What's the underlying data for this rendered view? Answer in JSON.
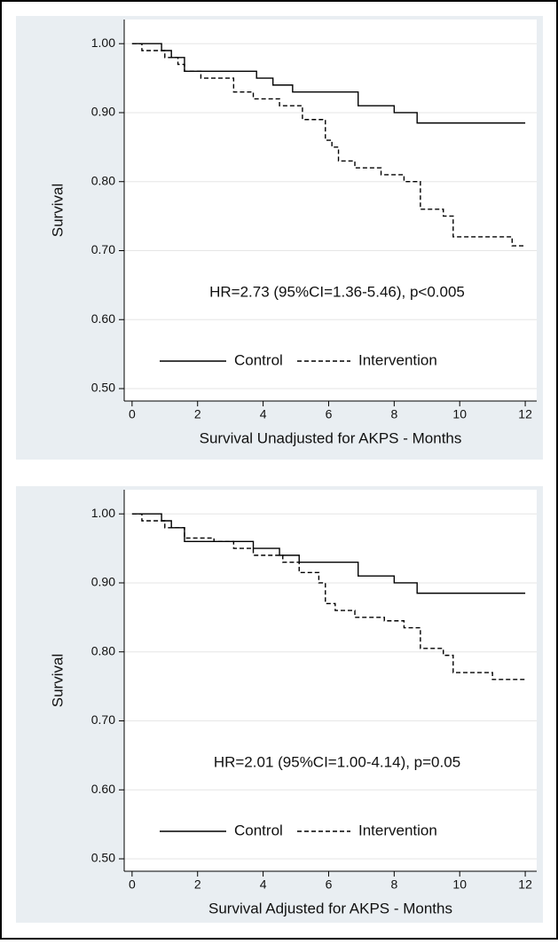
{
  "chart_data": [
    {
      "type": "line",
      "drawstyle": "steps-post",
      "x_label": "Survival Unadjusted for AKPS - Months",
      "y_label": "Survival",
      "annotation": "HR=2.73 (95%CI=1.36-5.46), p<0.005",
      "xlim": [
        -0.24,
        12.35
      ],
      "xticks": [
        0,
        2,
        4,
        6,
        8,
        10,
        12
      ],
      "ylim": [
        0.482,
        1.035
      ],
      "yticks": [
        {
          "value": 0.5,
          "label": "0.50"
        },
        {
          "value": 0.6,
          "label": "0.60"
        },
        {
          "value": 0.7,
          "label": "0.70"
        },
        {
          "value": 0.8,
          "label": "0.80"
        },
        {
          "value": 0.9,
          "label": "0.90"
        },
        {
          "value": 1.0,
          "label": "1.00"
        }
      ],
      "grid": true,
      "series": [
        {
          "name": "Control",
          "color": "#000000",
          "linestyle": "solid",
          "x": [
            0,
            0.9,
            1.2,
            1.6,
            3.8,
            4.3,
            4.9,
            6.9,
            8.0,
            8.7,
            12
          ],
          "values": [
            1.0,
            0.99,
            0.98,
            0.96,
            0.95,
            0.94,
            0.93,
            0.91,
            0.9,
            0.885,
            0.885
          ]
        },
        {
          "name": "Intervention",
          "color": "#000000",
          "linestyle": "dashed",
          "x": [
            0,
            0.3,
            1.0,
            1.4,
            1.6,
            2.1,
            3.1,
            3.7,
            4.5,
            5.2,
            5.9,
            6.1,
            6.3,
            6.8,
            7.6,
            8.3,
            8.8,
            9.5,
            9.8,
            11.6,
            12
          ],
          "values": [
            1.0,
            0.99,
            0.98,
            0.97,
            0.96,
            0.95,
            0.93,
            0.92,
            0.91,
            0.89,
            0.86,
            0.85,
            0.83,
            0.82,
            0.81,
            0.8,
            0.76,
            0.75,
            0.72,
            0.707,
            0.707
          ]
        }
      ]
    },
    {
      "type": "line",
      "drawstyle": "steps-post",
      "x_label": "Survival Adjusted for AKPS - Months",
      "y_label": "Survival",
      "annotation": "HR=2.01 (95%CI=1.00-4.14), p=0.05",
      "xlim": [
        -0.24,
        12.35
      ],
      "xticks": [
        0,
        2,
        4,
        6,
        8,
        10,
        12
      ],
      "ylim": [
        0.482,
        1.035
      ],
      "yticks": [
        {
          "value": 0.5,
          "label": "0.50"
        },
        {
          "value": 0.6,
          "label": "0.60"
        },
        {
          "value": 0.7,
          "label": "0.70"
        },
        {
          "value": 0.8,
          "label": "0.80"
        },
        {
          "value": 0.9,
          "label": "0.90"
        },
        {
          "value": 1.0,
          "label": "1.00"
        }
      ],
      "grid": true,
      "series": [
        {
          "name": "Control",
          "color": "#000000",
          "linestyle": "solid",
          "x": [
            0,
            0.9,
            1.2,
            1.6,
            3.7,
            4.5,
            5.1,
            6.9,
            8.0,
            8.7,
            12
          ],
          "values": [
            1.0,
            0.99,
            0.98,
            0.96,
            0.95,
            0.94,
            0.93,
            0.91,
            0.9,
            0.885,
            0.885
          ]
        },
        {
          "name": "Intervention",
          "color": "#000000",
          "linestyle": "dashed",
          "x": [
            0,
            0.3,
            1.0,
            1.6,
            2.5,
            3.1,
            3.7,
            4.6,
            5.1,
            5.7,
            5.9,
            6.2,
            6.8,
            7.7,
            8.3,
            8.8,
            9.5,
            9.8,
            11,
            12
          ],
          "values": [
            1.0,
            0.99,
            0.98,
            0.965,
            0.96,
            0.95,
            0.94,
            0.93,
            0.915,
            0.9,
            0.87,
            0.86,
            0.85,
            0.845,
            0.835,
            0.805,
            0.795,
            0.77,
            0.76,
            0.76
          ]
        }
      ]
    }
  ]
}
